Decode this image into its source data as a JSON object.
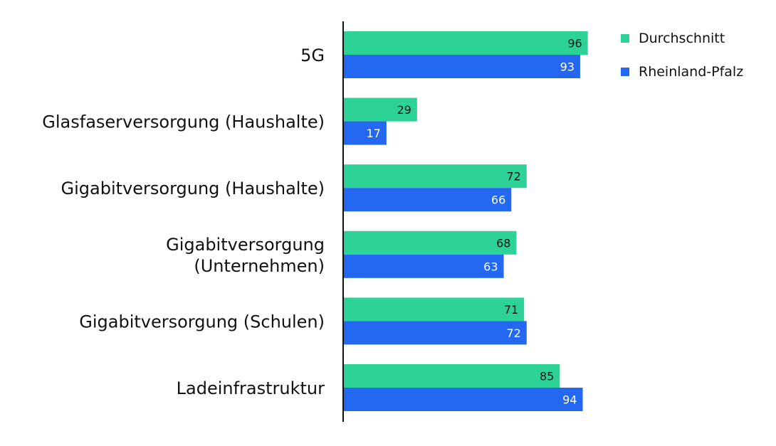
{
  "chart_data": {
    "type": "bar",
    "orientation": "horizontal",
    "title": "",
    "xlabel": "",
    "ylabel": "",
    "xlim": [
      0,
      100
    ],
    "grid": false,
    "legend_position": "top-right",
    "categories": [
      [
        "5G"
      ],
      [
        "Glasfaserversorgung (Haushalte)"
      ],
      [
        "Gigabitversorgung (Haushalte)"
      ],
      [
        "Gigabitversorgung",
        "(Unternehmen)"
      ],
      [
        "Gigabitversorgung (Schulen)"
      ],
      [
        "Ladeinfrastruktur"
      ]
    ],
    "series": [
      {
        "name": "Durchschnitt",
        "color": "#2dd396",
        "label_color": "#111111",
        "values": [
          96,
          29,
          72,
          68,
          71,
          85
        ]
      },
      {
        "name": "Rheinland-Pfalz",
        "color": "#2468f2",
        "label_color": "#ffffff",
        "values": [
          93,
          17,
          66,
          63,
          72,
          94
        ]
      }
    ]
  }
}
